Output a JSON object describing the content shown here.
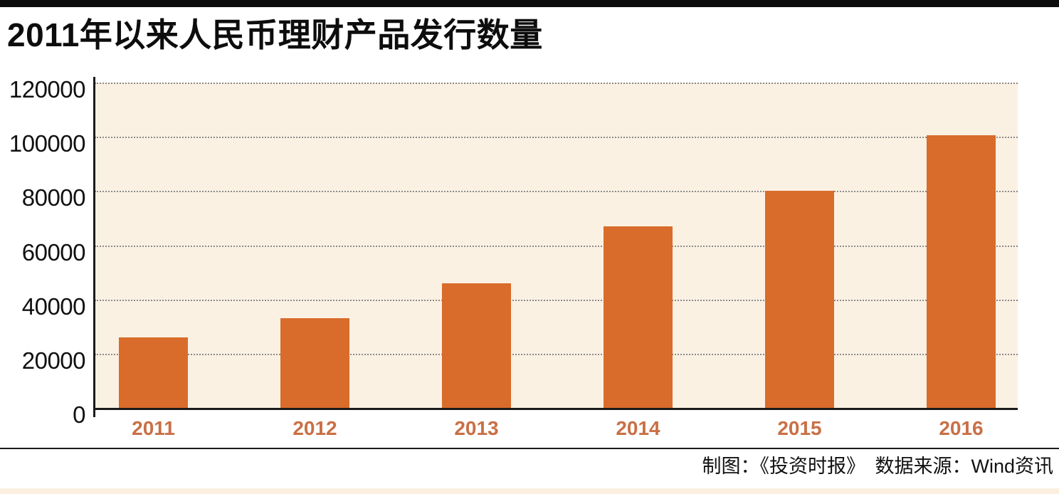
{
  "header": {
    "title": "2011年以来人民币理财产品发行数量"
  },
  "footer": {
    "credit": "制图：《投资时报》　数据来源：Wind资讯"
  },
  "colors": {
    "bar": "#d96b2b",
    "plot_background": "#fbf1e3",
    "year_label": "#c97046",
    "axis": "#1a1a1a",
    "gridline": "#8b8b8b",
    "top_bar": "#0d0d0d",
    "bottom_strip": "#fbf0e0"
  },
  "chart_data": {
    "type": "bar",
    "title": "2011年以来人民币理财产品发行数量",
    "categories": [
      "2011",
      "2012",
      "2013",
      "2014",
      "2015",
      "2016"
    ],
    "values": [
      26000,
      33000,
      46000,
      67000,
      80000,
      100500
    ],
    "xlabel": "",
    "ylabel": "",
    "ylim": [
      0,
      120000
    ],
    "yticks": [
      0,
      20000,
      40000,
      60000,
      80000,
      100000,
      120000
    ],
    "grid": "horizontal-dotted",
    "legend": "none",
    "source": "制图：《投资时报》　数据来源：Wind资讯"
  }
}
